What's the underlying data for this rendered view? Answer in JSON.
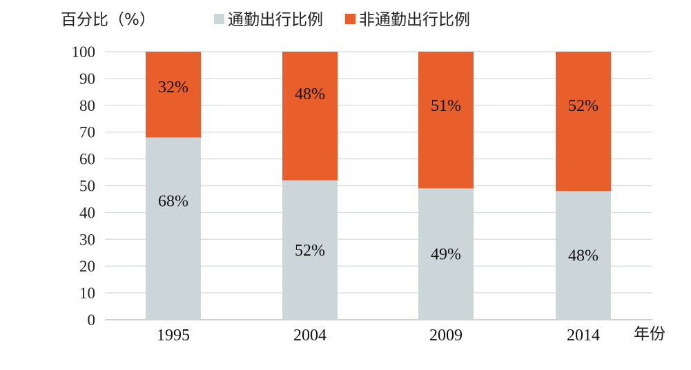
{
  "chart_data": {
    "type": "bar",
    "stacked": true,
    "ylabel": "百分比（%）",
    "xlabel": "年份",
    "ylim": [
      0,
      100
    ],
    "yticks": [
      "0",
      "10",
      "20",
      "30",
      "40",
      "50",
      "60",
      "70",
      "80",
      "90",
      "100"
    ],
    "categories": [
      "1995",
      "2004",
      "2009",
      "2014"
    ],
    "grid": true,
    "legend_position": "top",
    "series": [
      {
        "name": "通勤出行比例",
        "color": "#ccd5d8",
        "values": [
          68,
          52,
          49,
          48
        ],
        "labels": [
          "68%",
          "52%",
          "49%",
          "48%"
        ]
      },
      {
        "name": "非通勤出行比例",
        "color": "#e85f2c",
        "values": [
          32,
          48,
          51,
          52
        ],
        "labels": [
          "32%",
          "48%",
          "51%",
          "52%"
        ]
      }
    ]
  }
}
